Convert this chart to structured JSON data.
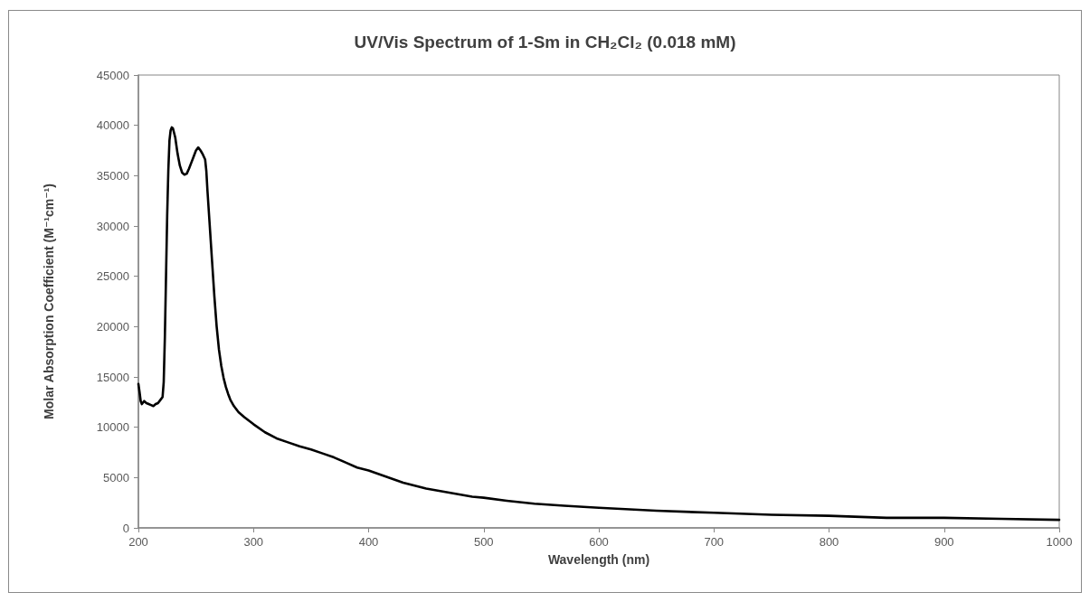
{
  "chart_data": {
    "type": "line",
    "title": "UV/Vis Spectrum of 1-Sm in CH₂Cl₂ (0.018 mM)",
    "xlabel": "Wavelength (nm)",
    "ylabel": "Molar Absorption Coefficient (M⁻¹cm⁻¹)",
    "x": [
      200,
      201,
      202,
      203,
      205,
      207,
      209,
      211,
      213,
      215,
      217,
      219,
      221,
      222,
      223,
      224,
      225,
      226,
      227,
      228,
      229,
      230,
      232,
      234,
      236,
      238,
      240,
      242,
      244,
      246,
      248,
      250,
      252,
      254,
      256,
      258,
      259,
      260,
      262,
      264,
      266,
      268,
      270,
      272,
      274,
      276,
      278,
      280,
      283,
      287,
      292,
      300,
      310,
      320,
      330,
      340,
      350,
      360,
      370,
      380,
      390,
      400,
      410,
      420,
      430,
      440,
      450,
      460,
      470,
      480,
      490,
      500,
      520,
      544,
      570,
      600,
      650,
      700,
      750,
      800,
      850,
      900,
      950,
      1000
    ],
    "series": [
      {
        "color": "#000000",
        "values": [
          14300,
          13500,
          12600,
          12300,
          12600,
          12400,
          12300,
          12200,
          12100,
          12300,
          12400,
          12700,
          13000,
          14500,
          19000,
          25000,
          31000,
          35500,
          38500,
          39500,
          39800,
          39700,
          38800,
          37200,
          36000,
          35300,
          35100,
          35200,
          35700,
          36300,
          36900,
          37500,
          37800,
          37500,
          37100,
          36600,
          35500,
          33500,
          30000,
          26500,
          23000,
          20000,
          17700,
          16100,
          14900,
          14000,
          13300,
          12700,
          12100,
          11500,
          11000,
          10300,
          9500,
          8900,
          8500,
          8100,
          7800,
          7400,
          7000,
          6500,
          6000,
          5700,
          5300,
          4900,
          4500,
          4200,
          3900,
          3700,
          3500,
          3300,
          3100,
          3000,
          2700,
          2400,
          2200,
          2000,
          1700,
          1500,
          1300,
          1200,
          1000,
          1000,
          900,
          800
        ]
      }
    ],
    "xlim": [
      200,
      1000
    ],
    "xticks": [
      200,
      300,
      400,
      500,
      600,
      700,
      800,
      900,
      1000
    ],
    "ylim": [
      0,
      45000
    ],
    "yticks": [
      0,
      5000,
      10000,
      15000,
      20000,
      25000,
      30000,
      35000,
      40000,
      45000
    ],
    "marker": "none",
    "line_style": "solid"
  }
}
